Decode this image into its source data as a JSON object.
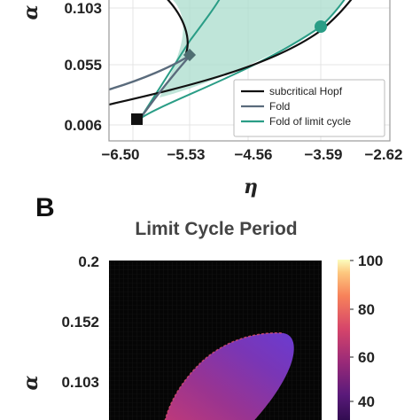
{
  "chart_data": [
    {
      "type": "line",
      "panel_label": "",
      "title": "",
      "xlabel": "η",
      "ylabel": "α",
      "xticks": [
        "−6.50",
        "−5.53",
        "−4.56",
        "−3.59",
        "−2.62"
      ],
      "yticks": [
        "0.006",
        "0.055",
        "0.103"
      ],
      "xlim": [
        -6.5,
        -2.62
      ],
      "ylim": [
        0.006,
        0.12
      ],
      "legend_position": "lower-right",
      "series": [
        {
          "name": "subcritical Hopf",
          "color": "#111111",
          "x": [
            -6.45,
            -6.0,
            -5.6,
            -5.2,
            -4.8,
            -4.4,
            -4.0,
            -3.7,
            -3.5,
            -3.3,
            -3.2,
            -3.0
          ],
          "y": [
            0.038,
            0.047,
            0.054,
            0.061,
            0.068,
            0.076,
            0.085,
            0.093,
            0.099,
            0.107,
            0.112,
            0.122
          ]
        },
        {
          "name": "Fold",
          "color": "#5a6b7c",
          "x": [
            -6.45,
            -6.1,
            -5.8,
            -5.6,
            -5.45
          ],
          "y": [
            0.043,
            0.049,
            0.058,
            0.066,
            0.071
          ]
        },
        {
          "name": "Fold of limit cycle",
          "color": "#2a9d86",
          "x": [
            -5.95,
            -5.8,
            -5.6,
            -5.4,
            -5.2,
            -5.0,
            -4.8,
            -4.6,
            -4.4,
            -4.2
          ],
          "y": [
            0.006,
            0.025,
            0.046,
            0.064,
            0.08,
            0.094,
            0.106,
            0.115,
            0.121,
            0.125
          ]
        }
      ],
      "markers": [
        {
          "shape": "square",
          "color": "#111111",
          "x": -6.0,
          "y": 0.012
        },
        {
          "shape": "diamond",
          "color": "#4f6e72",
          "x": -5.46,
          "y": 0.067
        },
        {
          "shape": "circle",
          "color": "#2a9d86",
          "x": -3.55,
          "y": 0.099
        }
      ],
      "shaded_region": {
        "color": "#a8dccd",
        "label": ""
      }
    },
    {
      "type": "heatmap",
      "panel_label": "B",
      "title": "Limit Cycle Period",
      "xlabel": "",
      "ylabel": "α",
      "yticks": [
        "0.2",
        "0.152",
        "0.103"
      ],
      "colorbar_ticks": [
        "100",
        "80",
        "60",
        "40"
      ],
      "colorbar_range": [
        33,
        100
      ],
      "colormap": "magma",
      "background_color": "#050505"
    }
  ]
}
